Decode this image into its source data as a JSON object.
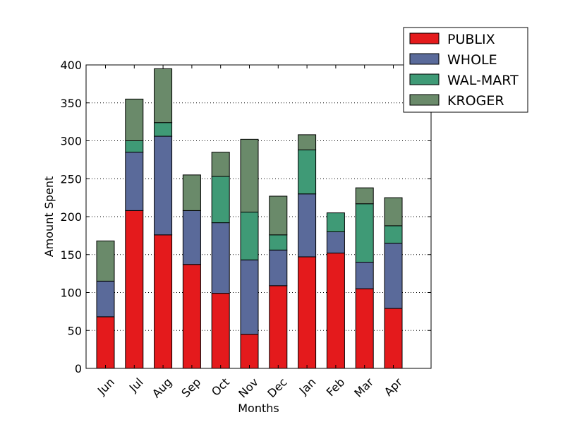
{
  "chart_data": {
    "type": "bar",
    "stacked": true,
    "title": "",
    "xlabel": "Months",
    "ylabel": "Amount Spent",
    "ylim": [
      0,
      400
    ],
    "yticks": [
      0,
      50,
      100,
      150,
      200,
      250,
      300,
      350,
      400
    ],
    "grid": "y-dotted",
    "legend_position": "top-right",
    "categories": [
      "Jun",
      "Jul",
      "Aug",
      "Sep",
      "Oct",
      "Nov",
      "Dec",
      "Jan",
      "Feb",
      "Mar",
      "Apr"
    ],
    "series": [
      {
        "name": "PUBLIX",
        "color": "#e41a1c",
        "values": [
          68,
          208,
          176,
          137,
          99,
          45,
          109,
          147,
          152,
          105,
          79
        ]
      },
      {
        "name": "WHOLE",
        "color": "#5a6a9a",
        "values": [
          47,
          77,
          130,
          71,
          93,
          98,
          47,
          83,
          28,
          35,
          86
        ]
      },
      {
        "name": "WAL-MART",
        "color": "#3f9a76",
        "values": [
          0,
          15,
          18,
          0,
          61,
          63,
          20,
          58,
          25,
          77,
          23
        ]
      },
      {
        "name": "KROGER",
        "color": "#6a8a6a",
        "values": [
          53,
          55,
          71,
          47,
          32,
          96,
          51,
          20,
          0,
          21,
          37
        ]
      }
    ]
  }
}
